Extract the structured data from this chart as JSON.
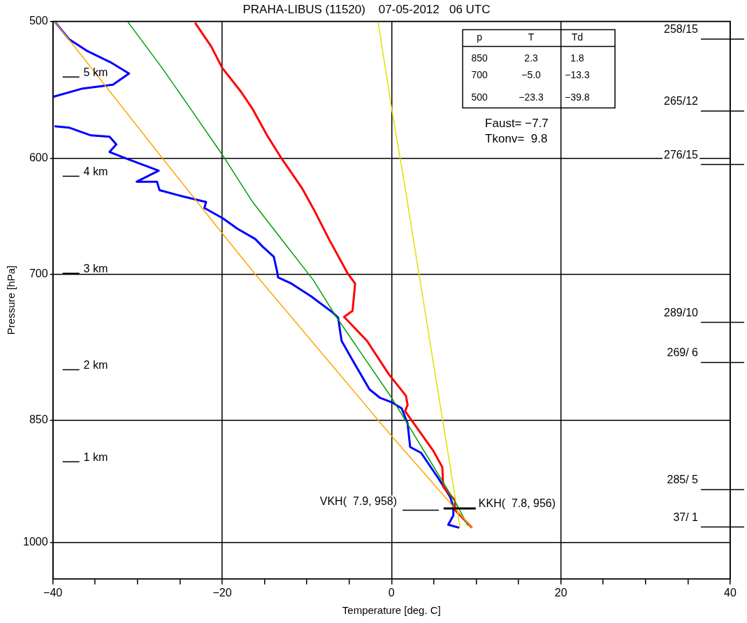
{
  "chart_data": {
    "type": "line",
    "title": "PRAHA-LIBUS (11520)    07-05-2012   06 UTC",
    "xlabel": "Temperature [deg. C]",
    "ylabel": "Pressure [hPa]",
    "xlim": [
      -40,
      40
    ],
    "xticks": [
      -40,
      {
        "value": -35,
        "label": null
      },
      {
        "value": -30,
        "label": null
      },
      {
        "value": -25,
        "label": null
      },
      -20,
      {
        "value": -15,
        "label": null
      },
      {
        "value": -10,
        "label": null
      },
      {
        "value": -5,
        "label": null
      },
      0,
      {
        "value": 5,
        "label": null
      },
      {
        "value": 10,
        "label": null
      },
      {
        "value": 15,
        "label": null
      },
      20,
      {
        "value": 25,
        "label": null
      },
      {
        "value": 30,
        "label": null
      },
      {
        "value": 35,
        "label": null
      },
      40
    ],
    "ylim": [
      1050,
      500
    ],
    "yticks": [
      500,
      600,
      700,
      850,
      1000
    ],
    "log": "y",
    "grid": true,
    "legend": false,
    "marker": "none",
    "line_style": "solid",
    "series": [
      {
        "color": "#ffa500",
        "x": [
          -39.8,
          -27.4,
          -20.0,
          -16.1,
          -0.1,
          9.5
        ],
        "values": [
          500,
          597,
          663,
          700,
          867,
          981
        ]
      },
      {
        "color": "#00a000",
        "x": [
          -31.2,
          -27.1,
          -23.6,
          -20.0,
          -16.4,
          -12.1,
          -9.2,
          -6.6,
          0.0,
          7.8,
          9.0
        ],
        "values": [
          500,
          532,
          563,
          597,
          636,
          677,
          706,
          740,
          825,
          953,
          978
        ]
      },
      {
        "color": "#e0e000",
        "x": [
          -1.6,
          0.0,
          1.6,
          3.0,
          6.1,
          8.1
        ],
        "values": [
          500,
          561,
          624,
          688,
          854,
          981
        ]
      },
      {
        "color": "#ff0000",
        "x": [
          -23.2,
          -21.3,
          -20.0,
          -17.8,
          -16.4,
          -14.7,
          -13.1,
          -10.6,
          -9.2,
          -7.4,
          -5.2,
          -4.3,
          -4.6,
          -5.6,
          -2.9,
          -0.3,
          1.7,
          1.9,
          1.6,
          4.9,
          6.0,
          6.1,
          7.5,
          7.5,
          9.5
        ],
        "values": [
          501,
          517,
          532,
          549,
          562,
          582,
          599,
          624,
          642,
          668,
          699,
          709,
          735,
          741,
          765,
          800,
          823,
          833,
          840,
          885,
          905,
          929,
          946,
          958,
          981
        ]
      },
      {
        "color": "#0000ff",
        "x": [
          -39.8,
          -38.1,
          -36.0,
          -33.2,
          -31.0,
          -32.9,
          -36.6,
          -40.0,
          null,
          -39.8,
          -38.1,
          -35.5,
          -33.3,
          -32.5,
          -33.3,
          -31.4,
          -27.5,
          -30.1,
          -27.7,
          -27.4,
          -24.8,
          -21.9,
          -22.1,
          -19.9,
          -18.2,
          -16.1,
          -15.2,
          -13.9,
          -13.5,
          -13.4,
          -11.8,
          -9.5,
          -6.9,
          -6.3,
          -5.9,
          -4.6,
          -2.6,
          -1.4,
          0.0,
          1.2,
          1.9,
          2.2,
          3.5,
          5.5,
          6.9,
          7.3,
          7.3,
          6.7,
          8.0
        ],
        "values": [
          500,
          512,
          520,
          528,
          536,
          544,
          547,
          553,
          null,
          575,
          576,
          582,
          583,
          589,
          595,
          600,
          610,
          619,
          619,
          626,
          631,
          636,
          641,
          650,
          659,
          668,
          675,
          684,
          698,
          703,
          709,
          721,
          737,
          742,
          765,
          785,
          816,
          825,
          830,
          837,
          854,
          881,
          888,
          918,
          941,
          954,
          965,
          977,
          981
        ]
      }
    ],
    "annotations": [
      "p",
      "T",
      "Td",
      "850",
      "2.3",
      "1.8",
      "700",
      "−5.0",
      "−13.3",
      "500",
      "−23.3",
      "−39.8",
      "Faust= −7.7",
      "Tkonv=  9.8",
      "5 km",
      "4 km",
      "3 km",
      "2 km",
      "1 km",
      "258/15",
      "265/12",
      "276/15",
      "289/10",
      "269/ 6",
      "285/ 5",
      "37/ 1",
      "VKH(  7.9, 958)",
      {
        "text": "KKH(  7.8, 956)",
        "x": 7.8,
        "y": 956
      }
    ]
  }
}
